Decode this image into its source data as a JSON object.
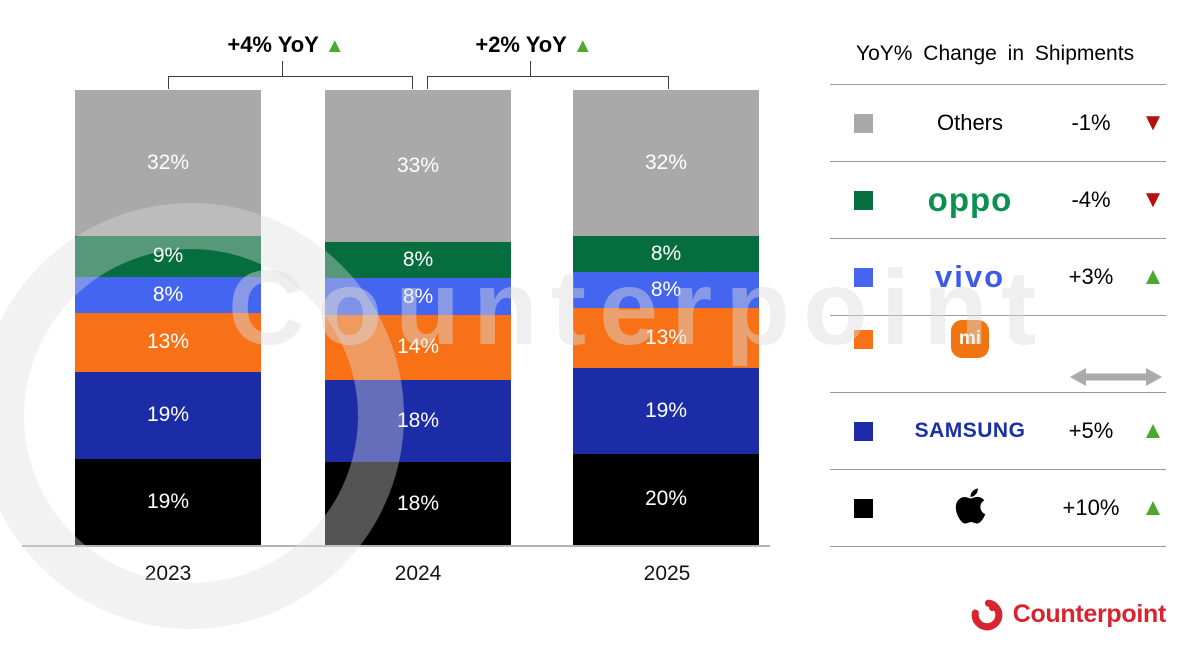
{
  "watermark": {
    "text": "Counterpoint"
  },
  "chart_data": {
    "type": "bar",
    "stacked": true,
    "categories": [
      "2023",
      "2024",
      "2025"
    ],
    "series": [
      {
        "name": "Others",
        "color": "#a9a9a9",
        "values": [
          32,
          33,
          32
        ]
      },
      {
        "name": "OPPO",
        "color": "#066e3e",
        "values": [
          9,
          8,
          8
        ]
      },
      {
        "name": "vivo",
        "color": "#4465ef",
        "values": [
          8,
          8,
          8
        ]
      },
      {
        "name": "Xiaomi",
        "color": "#f87116",
        "values": [
          13,
          14,
          13
        ]
      },
      {
        "name": "Samsung",
        "color": "#1c2ba6",
        "values": [
          19,
          18,
          19
        ]
      },
      {
        "name": "Apple",
        "color": "#000000",
        "values": [
          19,
          18,
          20
        ]
      }
    ],
    "value_suffix": "%",
    "annotations": [
      {
        "text": "+4% YoY",
        "icon": "up-triangle",
        "between": [
          "2023",
          "2024"
        ]
      },
      {
        "text": "+2% YoY",
        "icon": "up-triangle",
        "between": [
          "2024",
          "2025"
        ]
      }
    ],
    "up_triangle": "▲",
    "legend_position": "right",
    "grid": false,
    "xlabel": "",
    "ylabel": ""
  },
  "legend": {
    "title": "YoY% Change in Shipments",
    "rows": [
      {
        "brand": "Others",
        "logo": "text",
        "logo_text": "Others",
        "change": "-1%",
        "direction": "down"
      },
      {
        "brand": "OPPO",
        "logo": "oppo",
        "logo_text": "oppo",
        "change": "-4%",
        "direction": "down"
      },
      {
        "brand": "vivo",
        "logo": "vivo",
        "logo_text": "vivo",
        "change": "+3%",
        "direction": "up"
      },
      {
        "brand": "Xiaomi",
        "logo": "mi",
        "logo_text": "mi",
        "change": "",
        "direction": "flat"
      },
      {
        "brand": "Samsung",
        "logo": "samsung",
        "logo_text": "SAMSUNG",
        "change": "+5%",
        "direction": "up"
      },
      {
        "brand": "Apple",
        "logo": "apple",
        "logo_text": "",
        "change": "+10%",
        "direction": "up"
      }
    ],
    "direction_glyphs": {
      "up": "▲",
      "down": "▼"
    },
    "colors": {
      "up": "#4ea72e",
      "down": "#b50f10",
      "flat": "#ababab"
    }
  },
  "footer": {
    "brand": "Counterpoint",
    "brand_color": "#d8242f"
  }
}
